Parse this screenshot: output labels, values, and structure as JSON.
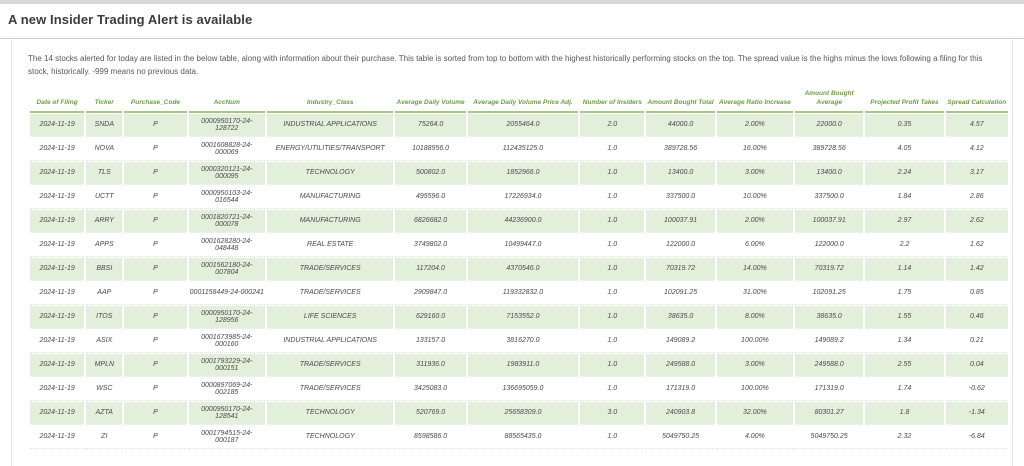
{
  "header": {
    "title": "A new Insider Trading Alert is available"
  },
  "intro_text": "The 14 stocks alerted for today are listed in the below table, along with information about their purchase. This table is sorted from top to bottom with the highest historically performing stocks on the top. The spread value is the highs minus the lows following a filing for this stock, historically. -999 means no previous data.",
  "table": {
    "columns": [
      "Date of Filing",
      "Ticker",
      "Purchase_Code",
      "AccNum",
      "Industry_Class",
      "Average Daily Volume",
      "Average Daily Volume Price Adj.",
      "Number of Insiders",
      "Amount Bought Total",
      "Average Ratio Increase",
      "Amount Bought Average",
      "Projected Profit Takes",
      "Spread Calculation"
    ],
    "rows": [
      [
        "2024-11-19",
        "SNDA",
        "P",
        "0000950170-24-128722",
        "INDUSTRIAL APPLICATIONS",
        "75264.0",
        "2055464.0",
        "2.0",
        "44000.0",
        "2.00%",
        "22000.0",
        "0.35",
        "4.57"
      ],
      [
        "2024-11-19",
        "NOVA",
        "P",
        "0001608828-24-000069",
        "ENERGY/UTILITIES/TRANSPORT",
        "10188956.0",
        "112435125.0",
        "1.0",
        "389728.56",
        "16.00%",
        "389728.56",
        "4.05",
        "4.12"
      ],
      [
        "2024-11-19",
        "TLS",
        "P",
        "0000320121-24-000095",
        "TECHNOLOGY",
        "500802.0",
        "1852966.0",
        "1.0",
        "13400.0",
        "3.00%",
        "13400.0",
        "2.24",
        "3.17"
      ],
      [
        "2024-11-19",
        "UCTT",
        "P",
        "0000950103-24-016544",
        "MANUFACTURING",
        "495596.0",
        "17226934.0",
        "1.0",
        "337500.0",
        "10.00%",
        "337500.0",
        "1.84",
        "2.86"
      ],
      [
        "2024-11-19",
        "ARRY",
        "P",
        "0001820721-24-000078",
        "MANUFACTURING",
        "6826682.0",
        "44236900.0",
        "1.0",
        "100037.91",
        "2.00%",
        "100037.91",
        "2.97",
        "2.62"
      ],
      [
        "2024-11-19",
        "APPS",
        "P",
        "0001628280-24-048448",
        "REAL ESTATE",
        "3749802.0",
        "10499447.0",
        "1.0",
        "122000.0",
        "6.00%",
        "122000.0",
        "2.2",
        "1.62"
      ],
      [
        "2024-11-19",
        "BBSI",
        "P",
        "0001562180-24-007804",
        "TRADE/SERVICES",
        "117204.0",
        "4370546.0",
        "1.0",
        "70319.72",
        "14.00%",
        "70319.72",
        "1.14",
        "1.42"
      ],
      [
        "2024-11-19",
        "AAP",
        "P",
        "0001158449-24-000241",
        "TRADE/SERVICES",
        "2909847.0",
        "119332832.0",
        "1.0",
        "102091.25",
        "31.00%",
        "102091.25",
        "1.75",
        "0.85"
      ],
      [
        "2024-11-19",
        "ITOS",
        "P",
        "0000950170-24-128956",
        "LIFE SCIENCES",
        "629160.0",
        "7153552.0",
        "1.0",
        "38635.0",
        "8.00%",
        "38635.0",
        "1.55",
        "0.46"
      ],
      [
        "2024-11-19",
        "ASIX",
        "P",
        "0001673985-24-000160",
        "INDUSTRIAL APPLICATIONS",
        "133157.0",
        "3816270.0",
        "1.0",
        "149089.2",
        "100.00%",
        "149089.2",
        "1.34",
        "0.21"
      ],
      [
        "2024-11-19",
        "MPLN",
        "P",
        "0001793229-24-000151",
        "TRADE/SERVICES",
        "311936.0",
        "1983911.0",
        "1.0",
        "249588.0",
        "3.00%",
        "249588.0",
        "2.55",
        "0.04"
      ],
      [
        "2024-11-19",
        "WSC",
        "P",
        "0000897069-24-002185",
        "TRADE/SERVICES",
        "3425083.0",
        "136695059.0",
        "1.0",
        "171319.0",
        "100.00%",
        "171319.0",
        "1.74",
        "-0.62"
      ],
      [
        "2024-11-19",
        "AZTA",
        "P",
        "0000950170-24-128541",
        "TECHNOLOGY",
        "520769.0",
        "25658309.0",
        "3.0",
        "240903.8",
        "32.00%",
        "80301.27",
        "1.8",
        "-1.34"
      ],
      [
        "2024-11-19",
        "ZI",
        "P",
        "0001794515-24-000187",
        "TECHNOLOGY",
        "8598586.0",
        "88565435.0",
        "1.0",
        "5049750.25",
        "4.00%",
        "5049750.25",
        "2.32",
        "-6.84"
      ]
    ]
  },
  "colors": {
    "header_text_green": "#6d9c4a",
    "row_stripe_green": "#e2efda"
  }
}
